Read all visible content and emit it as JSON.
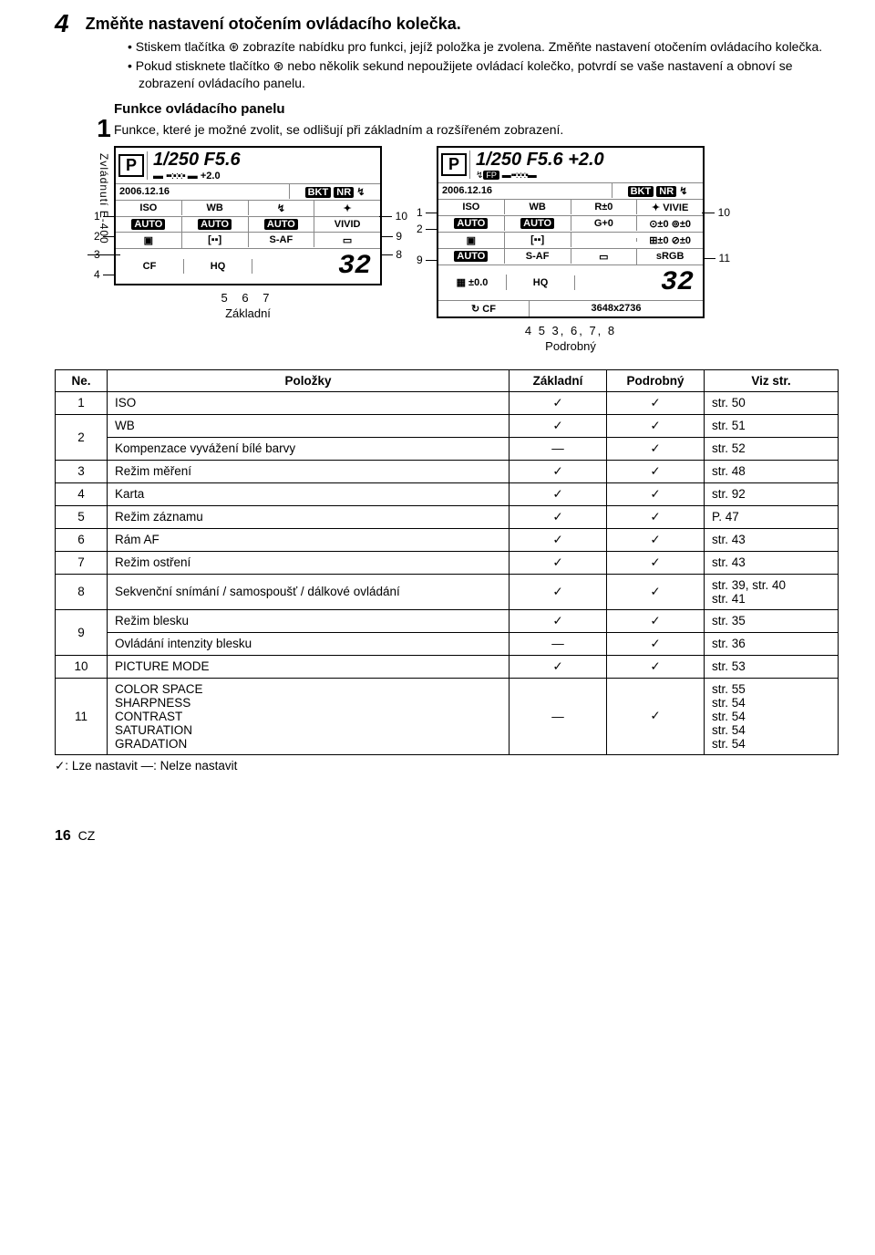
{
  "step": {
    "num": "4",
    "title": "Změňte nastavení otočením ovládacího kolečka.",
    "bullets": [
      "Stiskem tlačítka ⊛ zobrazíte nabídku pro funkci, jejíž položka je zvolena. Změňte nastavení otočením ovládacího kolečka.",
      "Pokud stisknete tlačítko ⊛ nebo několik sekund nepoužijete ovládací kolečko, potvrdí se vaše nastavení a obnoví se zobrazení ovládacího panelu."
    ]
  },
  "side": {
    "num": "1",
    "text": "Zvládnutí E-400"
  },
  "sec": {
    "head": "Funkce ovládacího panelu",
    "body": "Funkce, které je možné zvolit, se odlišují při základním a rozšířeném zobrazení."
  },
  "lcd_basic": {
    "top": "1/250 F5.6",
    "ev": "+2.0",
    "date": "2006.12.16",
    "bkt": "BKT",
    "nr": "NR",
    "iso": "ISO",
    "wb": "WB",
    "auto": "AUTO",
    "vivid": "VIVID",
    "saf": "S-AF",
    "cf": "CF",
    "hq": "HQ",
    "count": "32"
  },
  "lcd_detail": {
    "top": "1/250 F5.6 +2.0",
    "date": "2006.12.16",
    "bkt": "BKT",
    "nr": "NR",
    "iso": "ISO",
    "wb": "WB",
    "r0": "R±0",
    "vivid": "VIVIE",
    "auto": "AUTO",
    "g0": "G+0",
    "s0": "⊙±0",
    "c0": "⊚±0",
    "rgb0": "⊞±0",
    "f0": "⊘±0",
    "saf": "S-AF",
    "srgb": "sRGB",
    "ev0": "±0.0",
    "hq": "HQ",
    "cf": "CF",
    "res": "3648x2736",
    "count": "32"
  },
  "labels_basic": {
    "nums": "5  6  7",
    "caption": "Základní"
  },
  "labels_detail": {
    "nums": "4         5  3, 6, 7, 8",
    "caption": "Podrobný"
  },
  "table": {
    "head": {
      "no": "Ne.",
      "item": "Položky",
      "basic": "Základní",
      "detail": "Podrobný",
      "page": "Viz str."
    },
    "rows": [
      {
        "no": "1",
        "item": "ISO",
        "b": "✓",
        "d": "✓",
        "p": "str. 50"
      },
      {
        "no": "2",
        "item": "WB",
        "b": "✓",
        "d": "✓",
        "p": "str. 51",
        "rowspan": 2
      },
      {
        "item": "Kompenzace vyvážení bílé barvy",
        "b": "—",
        "d": "✓",
        "p": "str. 52"
      },
      {
        "no": "3",
        "item": "Režim měření",
        "b": "✓",
        "d": "✓",
        "p": "str. 48"
      },
      {
        "no": "4",
        "item": "Karta",
        "b": "✓",
        "d": "✓",
        "p": "str. 92"
      },
      {
        "no": "5",
        "item": "Režim záznamu",
        "b": "✓",
        "d": "✓",
        "p": "P. 47"
      },
      {
        "no": "6",
        "item": "Rám AF",
        "b": "✓",
        "d": "✓",
        "p": "str. 43"
      },
      {
        "no": "7",
        "item": "Režim ostření",
        "b": "✓",
        "d": "✓",
        "p": "str. 43"
      },
      {
        "no": "8",
        "item": "Sekvenční snímání / samospoušť / dálkové ovládání",
        "b": "✓",
        "d": "✓",
        "p": "str. 39, str. 40\nstr. 41"
      },
      {
        "no": "9",
        "item": "Režim blesku",
        "b": "✓",
        "d": "✓",
        "p": "str. 35",
        "rowspan": 2
      },
      {
        "item": "Ovládání intenzity blesku",
        "b": "—",
        "d": "✓",
        "p": "str. 36"
      },
      {
        "no": "10",
        "item": "PICTURE MODE",
        "b": "✓",
        "d": "✓",
        "p": "str. 53"
      },
      {
        "no": "11",
        "item": "COLOR SPACE\nSHARPNESS\nCONTRAST\nSATURATION\nGRADATION",
        "b": "—",
        "d": "✓",
        "p": "str. 55\nstr. 54\nstr. 54\nstr. 54\nstr. 54"
      }
    ]
  },
  "legend": "✓: Lze nastavit    —: Nelze nastavit",
  "footer": {
    "page": "16",
    "lang": "CZ"
  }
}
